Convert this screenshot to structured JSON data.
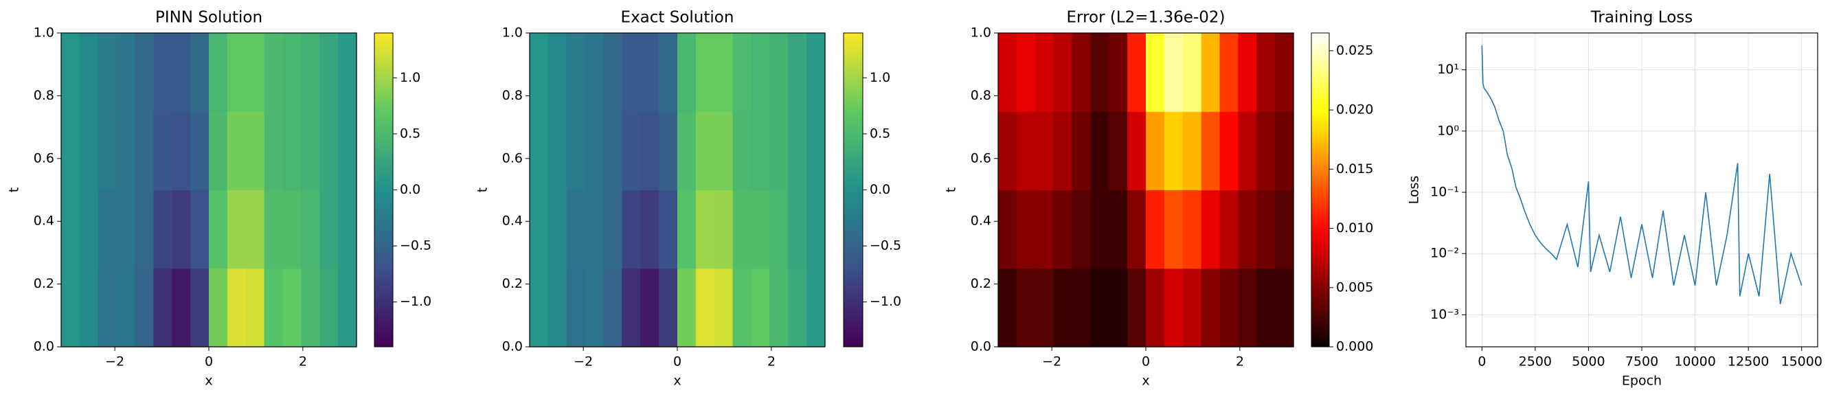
{
  "chart_data": [
    {
      "type": "heatmap",
      "title": "PINN Solution",
      "xlabel": "x",
      "ylabel": "t",
      "colormap": "viridis",
      "xlim": [
        -3.14159,
        3.14159
      ],
      "ylim": [
        0,
        1
      ],
      "xticks": [
        {
          "value": -2,
          "label": "−2"
        },
        0,
        2
      ],
      "yticks": [
        {
          "value": 0,
          "label": "0.0"
        },
        0.2,
        0.4,
        0.6,
        0.8,
        {
          "value": 1,
          "label": "1.0"
        }
      ],
      "clim": [
        -1.4,
        1.4
      ],
      "cticks": [
        {
          "value": -1,
          "label": "−1.0"
        },
        {
          "value": -0.5,
          "label": "−0.5"
        },
        {
          "value": 0,
          "label": "0.0"
        },
        0.5,
        {
          "value": 1,
          "label": "1.0"
        }
      ],
      "z": [
        [
          0.05,
          -0.1,
          -0.35,
          -0.3,
          -0.5,
          -1.0,
          -1.2,
          -0.9,
          0.8,
          1.25,
          1.2,
          0.6,
          0.7,
          0.5,
          0.3,
          0.1
        ],
        [
          0.05,
          -0.1,
          -0.3,
          -0.3,
          -0.45,
          -0.8,
          -0.9,
          -0.7,
          0.6,
          0.95,
          0.95,
          0.55,
          0.55,
          0.45,
          0.25,
          0.1
        ],
        [
          0.05,
          -0.1,
          -0.25,
          -0.3,
          -0.45,
          -0.65,
          -0.7,
          -0.55,
          0.5,
          0.8,
          0.8,
          0.5,
          0.45,
          0.4,
          0.25,
          0.1
        ],
        [
          0.05,
          -0.1,
          -0.25,
          -0.3,
          -0.45,
          -0.6,
          -0.6,
          -0.45,
          0.45,
          0.7,
          0.7,
          0.5,
          0.45,
          0.4,
          0.25,
          0.1
        ]
      ]
    },
    {
      "type": "heatmap",
      "title": "Exact Solution",
      "xlabel": "x",
      "ylabel": "t",
      "colormap": "viridis",
      "xlim": [
        -3.14159,
        3.14159
      ],
      "ylim": [
        0,
        1
      ],
      "xticks": [
        {
          "value": -2,
          "label": "−2"
        },
        0,
        2
      ],
      "yticks": [
        {
          "value": 0,
          "label": "0.0"
        },
        0.2,
        0.4,
        0.6,
        0.8,
        {
          "value": 1,
          "label": "1.0"
        }
      ],
      "clim": [
        -1.4,
        1.4
      ],
      "cticks": [
        {
          "value": -1,
          "label": "−1.0"
        },
        {
          "value": -0.5,
          "label": "−0.5"
        },
        {
          "value": 0,
          "label": "0.0"
        },
        0.5,
        {
          "value": 1,
          "label": "1.0"
        }
      ],
      "z": [
        [
          0.05,
          -0.1,
          -0.35,
          -0.3,
          -0.5,
          -1.0,
          -1.2,
          -0.9,
          0.8,
          1.26,
          1.2,
          0.6,
          0.7,
          0.5,
          0.3,
          0.1
        ],
        [
          0.05,
          -0.1,
          -0.3,
          -0.3,
          -0.45,
          -0.8,
          -0.9,
          -0.71,
          0.61,
          0.96,
          0.95,
          0.55,
          0.55,
          0.45,
          0.25,
          0.1
        ],
        [
          0.05,
          -0.1,
          -0.25,
          -0.3,
          -0.45,
          -0.65,
          -0.7,
          -0.56,
          0.52,
          0.82,
          0.81,
          0.5,
          0.45,
          0.4,
          0.25,
          0.1
        ],
        [
          0.05,
          -0.1,
          -0.25,
          -0.3,
          -0.45,
          -0.6,
          -0.6,
          -0.46,
          0.47,
          0.72,
          0.72,
          0.51,
          0.45,
          0.4,
          0.25,
          0.1
        ]
      ]
    },
    {
      "type": "heatmap",
      "title": "Error (L2=1.36e-02)",
      "xlabel": "x",
      "ylabel": "t",
      "colormap": "hot",
      "xlim": [
        -3.14159,
        3.14159
      ],
      "ylim": [
        0,
        1
      ],
      "xticks": [
        {
          "value": -2,
          "label": "−2"
        },
        0,
        2
      ],
      "yticks": [
        {
          "value": 0,
          "label": "0.0"
        },
        0.2,
        0.4,
        0.6,
        0.8,
        {
          "value": 1,
          "label": "1.0"
        }
      ],
      "clim": [
        0,
        0.0265
      ],
      "cticks": [
        {
          "value": 0,
          "label": "0.000"
        },
        0.005,
        {
          "value": 0.01,
          "label": "0.010"
        },
        0.015,
        {
          "value": 0.02,
          "label": "0.020"
        },
        0.025
      ],
      "z": [
        [
          0.002,
          0.003,
          0.003,
          0.002,
          0.002,
          0.001,
          0.001,
          0.003,
          0.006,
          0.008,
          0.007,
          0.005,
          0.004,
          0.003,
          0.002,
          0.002
        ],
        [
          0.004,
          0.005,
          0.005,
          0.004,
          0.003,
          0.002,
          0.002,
          0.005,
          0.011,
          0.013,
          0.012,
          0.009,
          0.007,
          0.005,
          0.004,
          0.003
        ],
        [
          0.006,
          0.007,
          0.007,
          0.006,
          0.004,
          0.002,
          0.003,
          0.008,
          0.016,
          0.018,
          0.017,
          0.013,
          0.01,
          0.007,
          0.005,
          0.004
        ],
        [
          0.008,
          0.009,
          0.008,
          0.007,
          0.005,
          0.003,
          0.004,
          0.011,
          0.021,
          0.024,
          0.023,
          0.017,
          0.012,
          0.009,
          0.006,
          0.005
        ]
      ]
    },
    {
      "type": "line",
      "title": "Training Loss",
      "xlabel": "Epoch",
      "ylabel": "Loss",
      "color": "#1f77b4",
      "log_y": true,
      "grid": true,
      "xlim": [
        -750,
        15750
      ],
      "ylim": [
        0.0003,
        40
      ],
      "xticks": [
        0,
        2500,
        5000,
        7500,
        10000,
        12500,
        15000
      ],
      "yticks": [
        {
          "value": 0.001,
          "label": "10⁻³"
        },
        {
          "value": 0.01,
          "label": "10⁻²"
        },
        {
          "value": 0.1,
          "label": "10⁻¹"
        },
        {
          "value": 1,
          "label": "10⁰"
        },
        {
          "value": 10,
          "label": "10¹"
        }
      ],
      "x": [
        0,
        50,
        100,
        200,
        400,
        600,
        800,
        1000,
        1200,
        1400,
        1600,
        1800,
        2000,
        2250,
        2500,
        2750,
        3000,
        3250,
        3500,
        4000,
        4500,
        5000,
        5100,
        5500,
        6000,
        6500,
        7000,
        7500,
        8000,
        8500,
        9000,
        9500,
        10000,
        10500,
        11000,
        11500,
        12000,
        12100,
        12500,
        13000,
        13500,
        14000,
        14500,
        15000
      ],
      "values": [
        25,
        6,
        5,
        4.5,
        3.5,
        2.5,
        1.5,
        1.0,
        0.4,
        0.25,
        0.12,
        0.08,
        0.05,
        0.03,
        0.02,
        0.015,
        0.012,
        0.01,
        0.008,
        0.03,
        0.006,
        0.15,
        0.005,
        0.02,
        0.005,
        0.04,
        0.004,
        0.03,
        0.004,
        0.05,
        0.003,
        0.02,
        0.003,
        0.1,
        0.003,
        0.02,
        0.3,
        0.002,
        0.01,
        0.002,
        0.2,
        0.0015,
        0.01,
        0.003
      ]
    }
  ]
}
